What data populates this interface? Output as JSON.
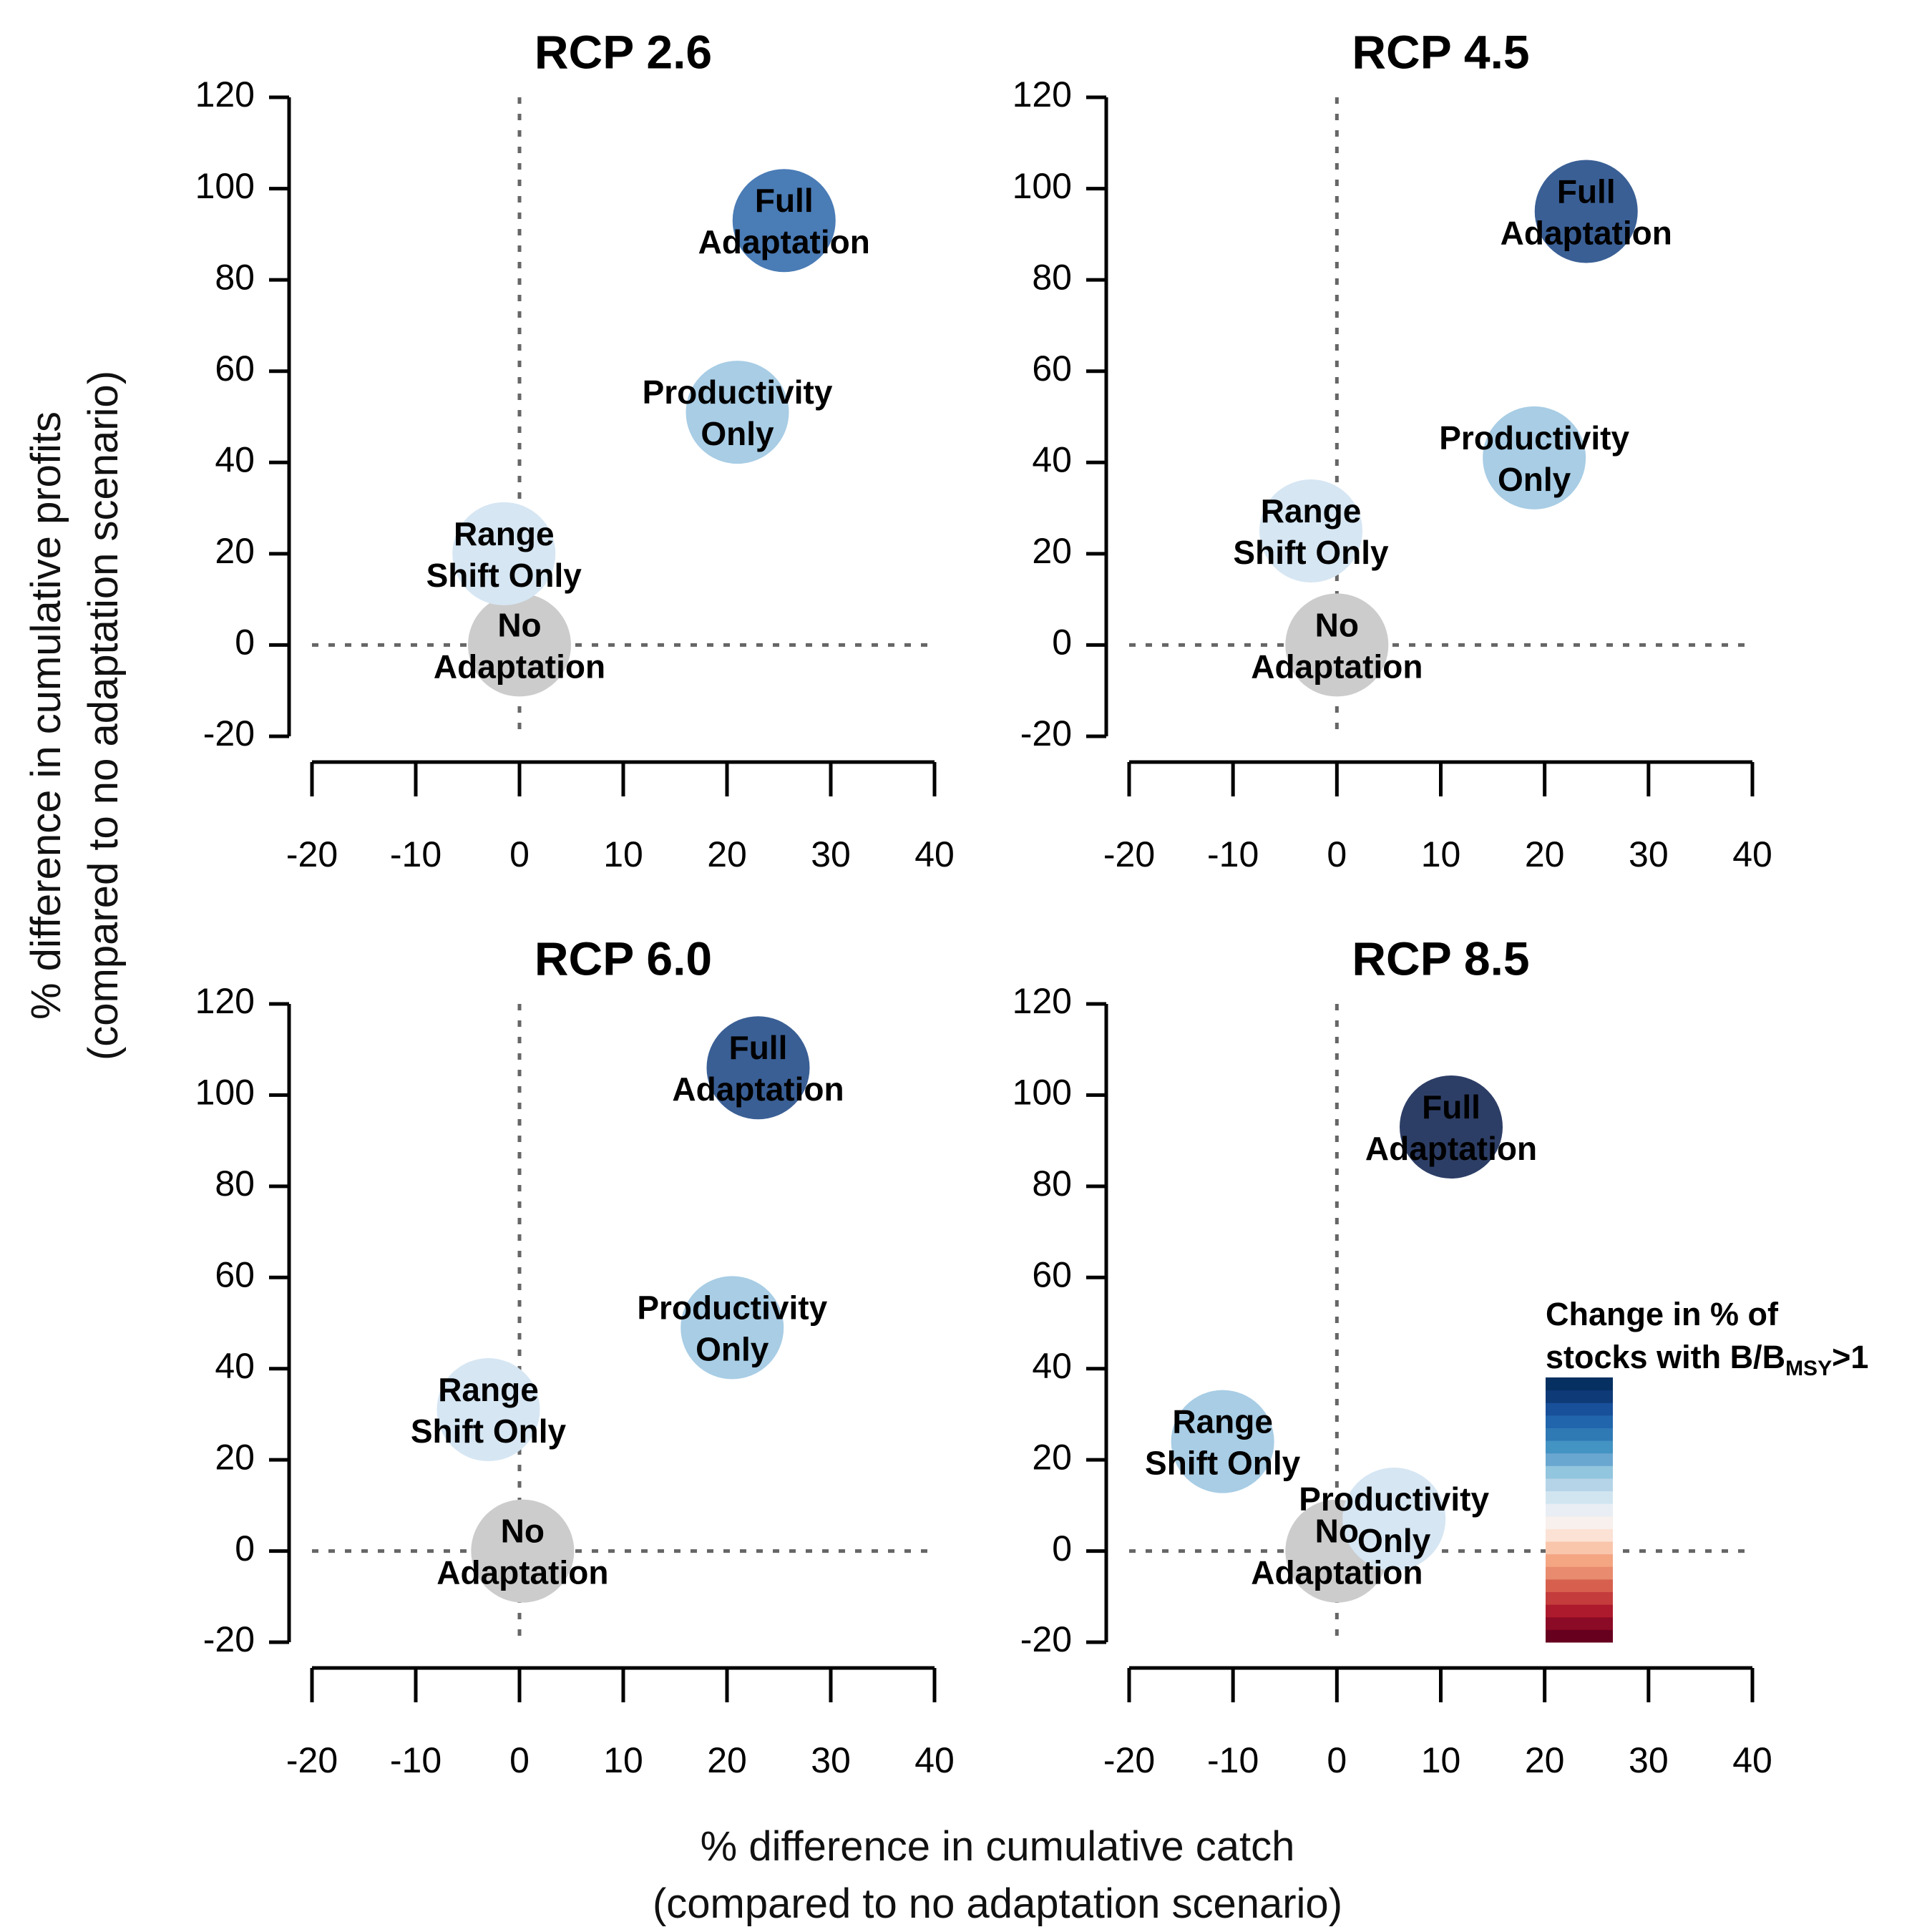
{
  "chart_data": [
    {
      "type": "scatter",
      "title": "RCP 2.6",
      "xlim": [
        -20,
        40
      ],
      "ylim": [
        -20,
        120
      ],
      "x_ticks": [
        "-20",
        "-10",
        "0",
        "10",
        "20",
        "30",
        "40"
      ],
      "y_ticks": [
        "-20",
        "0",
        "20",
        "40",
        "60",
        "80",
        "100",
        "120"
      ],
      "points": [
        {
          "label": [
            "No",
            "Adaptation"
          ],
          "x": 0,
          "y": 0,
          "color": "#cccccc"
        },
        {
          "label": [
            "Range",
            "Shift Only"
          ],
          "x": -1.5,
          "y": 20,
          "color": "#d6e6f3"
        },
        {
          "label": [
            "Productivity",
            "Only"
          ],
          "x": 21,
          "y": 51,
          "color": "#a8cde5"
        },
        {
          "label": [
            "Full",
            "Adaptation"
          ],
          "x": 25.5,
          "y": 93,
          "color": "#4a7cb6"
        }
      ]
    },
    {
      "type": "scatter",
      "title": "RCP 4.5",
      "xlim": [
        -20,
        40
      ],
      "ylim": [
        -20,
        120
      ],
      "x_ticks": [
        "-20",
        "-10",
        "0",
        "10",
        "20",
        "30",
        "40"
      ],
      "y_ticks": [
        "-20",
        "0",
        "20",
        "40",
        "60",
        "80",
        "100",
        "120"
      ],
      "points": [
        {
          "label": [
            "No",
            "Adaptation"
          ],
          "x": 0,
          "y": 0,
          "color": "#cccccc"
        },
        {
          "label": [
            "Range",
            "Shift Only"
          ],
          "x": -2.5,
          "y": 25,
          "color": "#d6e6f3"
        },
        {
          "label": [
            "Productivity",
            "Only"
          ],
          "x": 19,
          "y": 41,
          "color": "#a8cde5"
        },
        {
          "label": [
            "Full",
            "Adaptation"
          ],
          "x": 24,
          "y": 95,
          "color": "#3a5f95"
        }
      ]
    },
    {
      "type": "scatter",
      "title": "RCP 6.0",
      "xlim": [
        -20,
        40
      ],
      "ylim": [
        -20,
        120
      ],
      "x_ticks": [
        "-20",
        "-10",
        "0",
        "10",
        "20",
        "30",
        "40"
      ],
      "y_ticks": [
        "-20",
        "0",
        "20",
        "40",
        "60",
        "80",
        "100",
        "120"
      ],
      "points": [
        {
          "label": [
            "No",
            "Adaptation"
          ],
          "x": 0.3,
          "y": 0,
          "color": "#cccccc"
        },
        {
          "label": [
            "Range",
            "Shift Only"
          ],
          "x": -3,
          "y": 31,
          "color": "#d6e6f3"
        },
        {
          "label": [
            "Productivity",
            "Only"
          ],
          "x": 20.5,
          "y": 49,
          "color": "#a8cde5"
        },
        {
          "label": [
            "Full",
            "Adaptation"
          ],
          "x": 23,
          "y": 106,
          "color": "#3a5f95"
        }
      ]
    },
    {
      "type": "scatter",
      "title": "RCP 8.5",
      "xlim": [
        -20,
        40
      ],
      "ylim": [
        -20,
        120
      ],
      "x_ticks": [
        "-20",
        "-10",
        "0",
        "10",
        "20",
        "30",
        "40"
      ],
      "y_ticks": [
        "-20",
        "0",
        "20",
        "40",
        "60",
        "80",
        "100",
        "120"
      ],
      "points": [
        {
          "label": [
            "No",
            "Adaptation"
          ],
          "x": 0,
          "y": 0,
          "color": "#cccccc"
        },
        {
          "label": [
            "Range",
            "Shift Only"
          ],
          "x": -11,
          "y": 24,
          "color": "#a8cde5"
        },
        {
          "label": [
            "Productivity",
            "Only"
          ],
          "x": 5.5,
          "y": 7,
          "color": "#d6e6f3"
        },
        {
          "label": [
            "Full",
            "Adaptation"
          ],
          "x": 11,
          "y": 93,
          "color": "#2d3e66"
        }
      ]
    }
  ],
  "xlabel": [
    "% difference in cumulative catch",
    "(compared to no adaptation scenario)"
  ],
  "ylabel": [
    "% difference in cumulative profits",
    "(compared to no adaptation scenario)"
  ],
  "legend": {
    "title_line1": "Change in % of",
    "title_line2_pre": "stocks with B/B",
    "title_line2_sub": "MSY",
    "title_line2_post": ">1",
    "colors": [
      "#67001f",
      "#8b0a26",
      "#ae1a2d",
      "#c43c3c",
      "#d6604d",
      "#e88b6e",
      "#f4a582",
      "#f9c6ac",
      "#fbe2d5",
      "#f7f0ed",
      "#e8eef4",
      "#d1e5f0",
      "#b5d4e8",
      "#92c5de",
      "#6aa7d0",
      "#4393c3",
      "#2f79b5",
      "#2166ac",
      "#18509a",
      "#0f3a78",
      "#053061"
    ]
  }
}
